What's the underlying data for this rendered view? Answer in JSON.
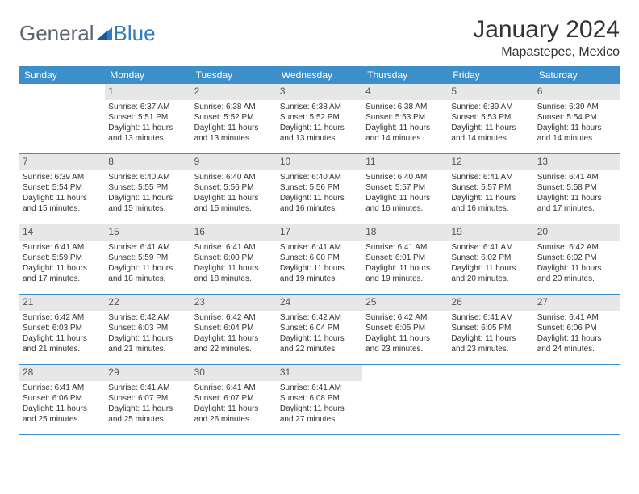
{
  "logo": {
    "textA": "General",
    "textB": "Blue"
  },
  "header": {
    "month_title": "January 2024",
    "location": "Mapastepec, Mexico"
  },
  "weekdays": [
    "Sunday",
    "Monday",
    "Tuesday",
    "Wednesday",
    "Thursday",
    "Friday",
    "Saturday"
  ],
  "colors": {
    "header_bg": "#3d8fc9",
    "daynum_bg": "#e7e7e7",
    "border": "#3d8fc9",
    "logo_gray": "#5a6570",
    "logo_blue": "#2f7bbf"
  },
  "weeks": [
    [
      {
        "num": "",
        "sunrise": "",
        "sunset": "",
        "daylight": ""
      },
      {
        "num": "1",
        "sunrise": "Sunrise: 6:37 AM",
        "sunset": "Sunset: 5:51 PM",
        "daylight": "Daylight: 11 hours and 13 minutes."
      },
      {
        "num": "2",
        "sunrise": "Sunrise: 6:38 AM",
        "sunset": "Sunset: 5:52 PM",
        "daylight": "Daylight: 11 hours and 13 minutes."
      },
      {
        "num": "3",
        "sunrise": "Sunrise: 6:38 AM",
        "sunset": "Sunset: 5:52 PM",
        "daylight": "Daylight: 11 hours and 13 minutes."
      },
      {
        "num": "4",
        "sunrise": "Sunrise: 6:38 AM",
        "sunset": "Sunset: 5:53 PM",
        "daylight": "Daylight: 11 hours and 14 minutes."
      },
      {
        "num": "5",
        "sunrise": "Sunrise: 6:39 AM",
        "sunset": "Sunset: 5:53 PM",
        "daylight": "Daylight: 11 hours and 14 minutes."
      },
      {
        "num": "6",
        "sunrise": "Sunrise: 6:39 AM",
        "sunset": "Sunset: 5:54 PM",
        "daylight": "Daylight: 11 hours and 14 minutes."
      }
    ],
    [
      {
        "num": "7",
        "sunrise": "Sunrise: 6:39 AM",
        "sunset": "Sunset: 5:54 PM",
        "daylight": "Daylight: 11 hours and 15 minutes."
      },
      {
        "num": "8",
        "sunrise": "Sunrise: 6:40 AM",
        "sunset": "Sunset: 5:55 PM",
        "daylight": "Daylight: 11 hours and 15 minutes."
      },
      {
        "num": "9",
        "sunrise": "Sunrise: 6:40 AM",
        "sunset": "Sunset: 5:56 PM",
        "daylight": "Daylight: 11 hours and 15 minutes."
      },
      {
        "num": "10",
        "sunrise": "Sunrise: 6:40 AM",
        "sunset": "Sunset: 5:56 PM",
        "daylight": "Daylight: 11 hours and 16 minutes."
      },
      {
        "num": "11",
        "sunrise": "Sunrise: 6:40 AM",
        "sunset": "Sunset: 5:57 PM",
        "daylight": "Daylight: 11 hours and 16 minutes."
      },
      {
        "num": "12",
        "sunrise": "Sunrise: 6:41 AM",
        "sunset": "Sunset: 5:57 PM",
        "daylight": "Daylight: 11 hours and 16 minutes."
      },
      {
        "num": "13",
        "sunrise": "Sunrise: 6:41 AM",
        "sunset": "Sunset: 5:58 PM",
        "daylight": "Daylight: 11 hours and 17 minutes."
      }
    ],
    [
      {
        "num": "14",
        "sunrise": "Sunrise: 6:41 AM",
        "sunset": "Sunset: 5:59 PM",
        "daylight": "Daylight: 11 hours and 17 minutes."
      },
      {
        "num": "15",
        "sunrise": "Sunrise: 6:41 AM",
        "sunset": "Sunset: 5:59 PM",
        "daylight": "Daylight: 11 hours and 18 minutes."
      },
      {
        "num": "16",
        "sunrise": "Sunrise: 6:41 AM",
        "sunset": "Sunset: 6:00 PM",
        "daylight": "Daylight: 11 hours and 18 minutes."
      },
      {
        "num": "17",
        "sunrise": "Sunrise: 6:41 AM",
        "sunset": "Sunset: 6:00 PM",
        "daylight": "Daylight: 11 hours and 19 minutes."
      },
      {
        "num": "18",
        "sunrise": "Sunrise: 6:41 AM",
        "sunset": "Sunset: 6:01 PM",
        "daylight": "Daylight: 11 hours and 19 minutes."
      },
      {
        "num": "19",
        "sunrise": "Sunrise: 6:41 AM",
        "sunset": "Sunset: 6:02 PM",
        "daylight": "Daylight: 11 hours and 20 minutes."
      },
      {
        "num": "20",
        "sunrise": "Sunrise: 6:42 AM",
        "sunset": "Sunset: 6:02 PM",
        "daylight": "Daylight: 11 hours and 20 minutes."
      }
    ],
    [
      {
        "num": "21",
        "sunrise": "Sunrise: 6:42 AM",
        "sunset": "Sunset: 6:03 PM",
        "daylight": "Daylight: 11 hours and 21 minutes."
      },
      {
        "num": "22",
        "sunrise": "Sunrise: 6:42 AM",
        "sunset": "Sunset: 6:03 PM",
        "daylight": "Daylight: 11 hours and 21 minutes."
      },
      {
        "num": "23",
        "sunrise": "Sunrise: 6:42 AM",
        "sunset": "Sunset: 6:04 PM",
        "daylight": "Daylight: 11 hours and 22 minutes."
      },
      {
        "num": "24",
        "sunrise": "Sunrise: 6:42 AM",
        "sunset": "Sunset: 6:04 PM",
        "daylight": "Daylight: 11 hours and 22 minutes."
      },
      {
        "num": "25",
        "sunrise": "Sunrise: 6:42 AM",
        "sunset": "Sunset: 6:05 PM",
        "daylight": "Daylight: 11 hours and 23 minutes."
      },
      {
        "num": "26",
        "sunrise": "Sunrise: 6:41 AM",
        "sunset": "Sunset: 6:05 PM",
        "daylight": "Daylight: 11 hours and 23 minutes."
      },
      {
        "num": "27",
        "sunrise": "Sunrise: 6:41 AM",
        "sunset": "Sunset: 6:06 PM",
        "daylight": "Daylight: 11 hours and 24 minutes."
      }
    ],
    [
      {
        "num": "28",
        "sunrise": "Sunrise: 6:41 AM",
        "sunset": "Sunset: 6:06 PM",
        "daylight": "Daylight: 11 hours and 25 minutes."
      },
      {
        "num": "29",
        "sunrise": "Sunrise: 6:41 AM",
        "sunset": "Sunset: 6:07 PM",
        "daylight": "Daylight: 11 hours and 25 minutes."
      },
      {
        "num": "30",
        "sunrise": "Sunrise: 6:41 AM",
        "sunset": "Sunset: 6:07 PM",
        "daylight": "Daylight: 11 hours and 26 minutes."
      },
      {
        "num": "31",
        "sunrise": "Sunrise: 6:41 AM",
        "sunset": "Sunset: 6:08 PM",
        "daylight": "Daylight: 11 hours and 27 minutes."
      },
      {
        "num": "",
        "sunrise": "",
        "sunset": "",
        "daylight": ""
      },
      {
        "num": "",
        "sunrise": "",
        "sunset": "",
        "daylight": ""
      },
      {
        "num": "",
        "sunrise": "",
        "sunset": "",
        "daylight": ""
      }
    ]
  ]
}
